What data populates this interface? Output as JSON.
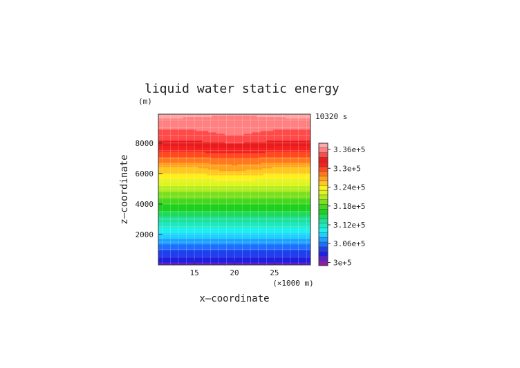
{
  "chart_data": {
    "type": "heatmap",
    "title": "liquid water static energy",
    "time_label": "10320 s",
    "xlabel": "x—coordinate",
    "ylabel": "z—coordinate",
    "x_unit": "(×1000 m)",
    "y_unit": "(m)",
    "xlim": [
      10.5,
      29.5
    ],
    "ylim": [
      0,
      9900
    ],
    "x_ticks": [
      "15",
      "20",
      "25"
    ],
    "y_ticks": [
      "2000",
      "4000",
      "6000",
      "8000"
    ],
    "colorbar": {
      "min": 299000,
      "max": 338000,
      "step": 1500,
      "tick_labels": [
        "3.36e+5",
        "3.3e+5",
        "3.24e+5",
        "3.18e+5",
        "3.12e+5",
        "3.06e+5",
        "3e+5"
      ],
      "tick_values": [
        336000,
        330000,
        324000,
        318000,
        312000,
        306000,
        300000
      ]
    },
    "field_profile": {
      "z": [
        0,
        500,
        1000,
        1500,
        2000,
        2500,
        3000,
        3500,
        4000,
        4500,
        5000,
        5500,
        6000,
        6500,
        7000,
        7500,
        8000,
        8500,
        9000,
        9500,
        9900
      ],
      "value": [
        301500,
        303200,
        305000,
        307000,
        309200,
        311300,
        313300,
        315300,
        317100,
        318900,
        320800,
        322600,
        324600,
        326300,
        328600,
        330800,
        332800,
        334400,
        335100,
        335900,
        337500
      ]
    },
    "grid": true
  },
  "labels": {
    "title": "liquid water static energy",
    "y_unit": "(m)",
    "time": "10320 s",
    "ylabel": "z—coordinate",
    "xlabel": "x—coordinate",
    "x_unit": "(×1000 m)"
  }
}
